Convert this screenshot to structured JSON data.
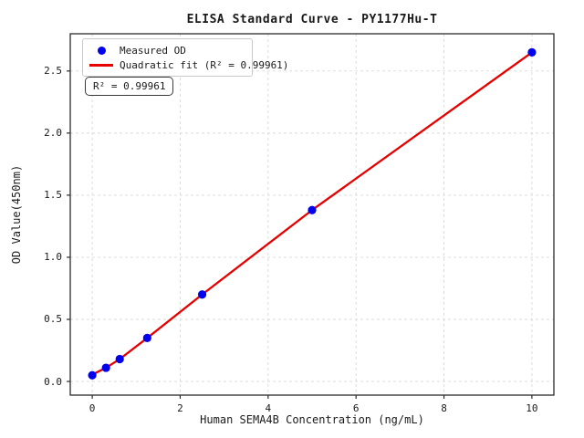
{
  "figure": {
    "title": "ELISA Standard Curve - PY1177Hu-T",
    "annotation": "R² = 0.99961",
    "legend": {
      "items": [
        {
          "label": "Measured OD",
          "marker": "dot",
          "color": "#0000ee"
        },
        {
          "label": "Quadratic fit (R² = 0.99961)",
          "marker": "line",
          "color": "#e60000"
        }
      ]
    }
  },
  "chart_data": {
    "type": "scatter",
    "title": "ELISA Standard Curve - PY1177Hu-T",
    "xlabel": "Human SEMA4B Concentration (ng/mL)",
    "ylabel": "OD Value(450nm)",
    "xlim": [
      -0.5,
      10.5
    ],
    "ylim": [
      -0.11,
      2.8
    ],
    "x_ticks": [
      0,
      2,
      4,
      6,
      8,
      10
    ],
    "x_tick_labels": [
      "0",
      "2",
      "4",
      "6",
      "8",
      "10"
    ],
    "y_ticks": [
      0.0,
      0.5,
      1.0,
      1.5,
      2.0,
      2.5
    ],
    "y_tick_labels": [
      "0.0",
      "0.5",
      "1.0",
      "1.5",
      "2.0",
      "2.5"
    ],
    "grid": true,
    "legend_position": "upper left",
    "series": [
      {
        "name": "Measured OD",
        "type": "scatter",
        "color": "#0000ee",
        "x": [
          0,
          0.313,
          0.625,
          1.25,
          2.5,
          5,
          10
        ],
        "y": [
          0.05,
          0.11,
          0.18,
          0.35,
          0.7,
          1.38,
          2.65
        ]
      },
      {
        "name": "Quadratic fit",
        "type": "line",
        "color": "#e60000",
        "r_squared": 0.99961,
        "x": [
          0,
          0.313,
          0.625,
          1.25,
          2.5,
          5,
          10
        ],
        "y": [
          0.055,
          0.11,
          0.18,
          0.35,
          0.7,
          1.38,
          2.65
        ]
      }
    ]
  }
}
